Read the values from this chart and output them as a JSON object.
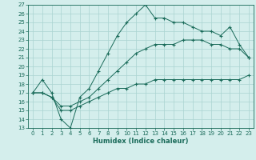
{
  "title": "",
  "xlabel": "Humidex (Indice chaleur)",
  "xlim": [
    -0.5,
    23.5
  ],
  "ylim": [
    13,
    27
  ],
  "xticks": [
    0,
    1,
    2,
    3,
    4,
    5,
    6,
    7,
    8,
    9,
    10,
    11,
    12,
    13,
    14,
    15,
    16,
    17,
    18,
    19,
    20,
    21,
    22,
    23
  ],
  "yticks": [
    13,
    14,
    15,
    16,
    17,
    18,
    19,
    20,
    21,
    22,
    23,
    24,
    25,
    26,
    27
  ],
  "background_color": "#d4eeec",
  "grid_color": "#aad4d0",
  "line_color": "#1a6b5a",
  "line1_x": [
    0,
    1,
    2,
    3,
    4,
    5,
    6,
    7,
    8,
    9,
    10,
    11,
    12,
    13,
    14,
    15,
    16,
    17,
    18,
    19,
    20,
    21,
    22,
    23
  ],
  "line1_y": [
    17.0,
    18.5,
    17.0,
    14.0,
    13.0,
    16.5,
    17.5,
    19.5,
    21.5,
    23.5,
    25.0,
    26.0,
    27.0,
    25.5,
    25.5,
    25.0,
    25.0,
    24.5,
    24.0,
    24.0,
    23.5,
    24.5,
    22.5,
    21.0
  ],
  "line2_x": [
    0,
    1,
    2,
    3,
    4,
    5,
    6,
    7,
    8,
    9,
    10,
    11,
    12,
    13,
    14,
    15,
    16,
    17,
    18,
    19,
    20,
    21,
    22,
    23
  ],
  "line2_y": [
    17.0,
    17.0,
    16.5,
    15.5,
    15.5,
    16.0,
    16.5,
    17.5,
    18.5,
    19.5,
    20.5,
    21.5,
    22.0,
    22.5,
    22.5,
    22.5,
    23.0,
    23.0,
    23.0,
    22.5,
    22.5,
    22.0,
    22.0,
    21.0
  ],
  "line3_x": [
    0,
    1,
    2,
    3,
    4,
    5,
    6,
    7,
    8,
    9,
    10,
    11,
    12,
    13,
    14,
    15,
    16,
    17,
    18,
    19,
    20,
    21,
    22,
    23
  ],
  "line3_y": [
    17.0,
    17.0,
    16.5,
    15.0,
    15.0,
    15.5,
    16.0,
    16.5,
    17.0,
    17.5,
    17.5,
    18.0,
    18.0,
    18.5,
    18.5,
    18.5,
    18.5,
    18.5,
    18.5,
    18.5,
    18.5,
    18.5,
    18.5,
    19.0
  ],
  "tick_fontsize": 5.0,
  "xlabel_fontsize": 6.0
}
